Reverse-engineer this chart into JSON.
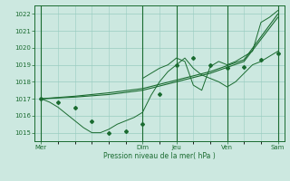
{
  "title": "",
  "xlabel": "Pression niveau de la mer( hPa )",
  "ylim": [
    1014.5,
    1022.5
  ],
  "yticks": [
    1015,
    1016,
    1017,
    1018,
    1019,
    1020,
    1021,
    1022
  ],
  "bg_color": "#cce8e0",
  "grid_color": "#99ccc0",
  "line_color": "#1a6b30",
  "marker_color": "#1a6b30",
  "vline_positions": [
    0,
    48,
    64,
    88,
    112
  ],
  "line1_x": [
    0,
    4,
    8,
    12,
    16,
    20,
    24,
    28,
    32,
    36,
    40,
    44,
    48,
    52,
    56,
    60,
    64,
    68,
    72,
    76,
    80,
    84,
    88,
    92,
    96,
    100,
    104,
    108,
    112
  ],
  "line1_y": [
    1017.0,
    1016.8,
    1016.5,
    1016.1,
    1015.7,
    1015.3,
    1015.0,
    1015.0,
    1015.2,
    1015.5,
    1015.7,
    1015.9,
    1016.2,
    1017.2,
    1018.0,
    1018.6,
    1019.0,
    1019.4,
    1018.8,
    1018.4,
    1018.2,
    1018.0,
    1017.7,
    1018.0,
    1018.5,
    1019.0,
    1019.2,
    1019.5,
    1019.8
  ],
  "line2_x": [
    0,
    16,
    32,
    48,
    64,
    80,
    96,
    112
  ],
  "line2_y": [
    1017.0,
    1017.1,
    1017.25,
    1017.5,
    1018.0,
    1018.5,
    1019.2,
    1021.8
  ],
  "line3_x": [
    0,
    16,
    32,
    48,
    64,
    80,
    96,
    112
  ],
  "line3_y": [
    1017.0,
    1017.15,
    1017.35,
    1017.6,
    1018.1,
    1018.6,
    1019.3,
    1022.0
  ],
  "marker_x": [
    0,
    8,
    16,
    24,
    32,
    40,
    48,
    56,
    64,
    72,
    80,
    88,
    96,
    104,
    112
  ],
  "marker_y": [
    1017.0,
    1016.8,
    1016.5,
    1015.7,
    1015.0,
    1015.1,
    1015.5,
    1017.3,
    1019.0,
    1019.4,
    1019.0,
    1018.8,
    1018.85,
    1019.3,
    1019.7
  ],
  "jagged2_x": [
    48,
    56,
    60,
    64,
    68,
    72,
    76,
    80,
    84,
    88,
    92,
    96,
    100,
    104,
    108,
    112
  ],
  "jagged2_y": [
    1018.2,
    1018.8,
    1019.0,
    1019.4,
    1019.2,
    1017.8,
    1017.5,
    1018.9,
    1019.2,
    1019.0,
    1019.2,
    1019.5,
    1019.8,
    1021.5,
    1021.8,
    1022.2
  ],
  "xtick_pos": [
    0,
    48,
    64,
    88,
    112
  ],
  "xtick_labels": [
    "Mer",
    "Dim",
    "Jeu",
    "Ven",
    "Sam"
  ]
}
